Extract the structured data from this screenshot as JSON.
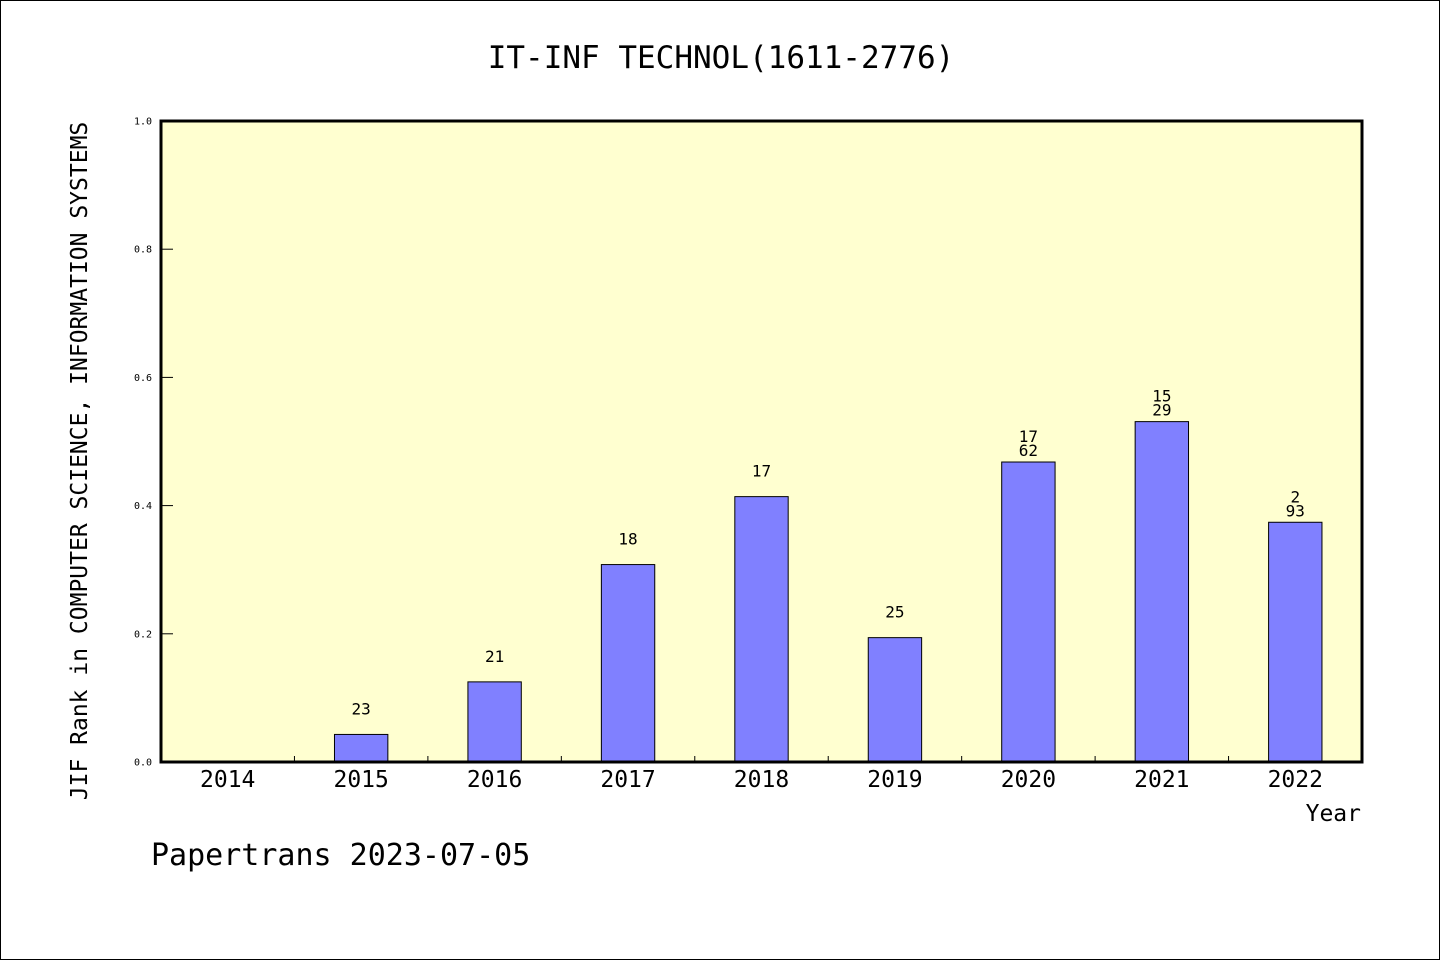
{
  "chart_data": {
    "type": "bar",
    "title": "IT-INF TECHNOL(1611-2776)",
    "xlabel": "Year",
    "ylabel": "JIF Rank in COMPUTER SCIENCE, INFORMATION SYSTEMS",
    "ylim": [
      0,
      1.0
    ],
    "yticks": [
      "0.0",
      "0.2",
      "0.4",
      "0.6",
      "0.8",
      "1.0"
    ],
    "categories": [
      "2014",
      "2015",
      "2016",
      "2017",
      "2018",
      "2019",
      "2020",
      "2021",
      "2022"
    ],
    "values": [
      null,
      0.043,
      0.125,
      0.308,
      0.414,
      0.194,
      0.468,
      0.531,
      0.374
    ],
    "labels": [
      [],
      [
        "23"
      ],
      [
        "21"
      ],
      [
        "18"
      ],
      [
        "17"
      ],
      [
        "25"
      ],
      [
        "17",
        "62"
      ],
      [
        "15",
        "29"
      ],
      [
        "2",
        "93"
      ]
    ],
    "colors": {
      "plot_background": "#ffffd0",
      "bar_fill": "#8080ff",
      "bar_stroke": "#000000"
    },
    "grid": false,
    "legend": "none"
  },
  "footer": {
    "text": "Papertrans 2023-07-05"
  }
}
